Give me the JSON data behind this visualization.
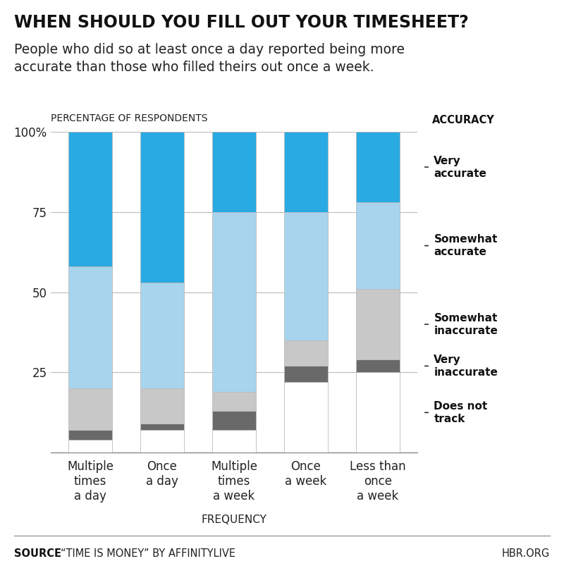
{
  "title_bold": "WHEN SHOULD YOU FILL OUT YOUR TIMESHEET?",
  "title_sub": "People who did so at least once a day reported being more\naccurate than those who filled theirs out once a week.",
  "ylabel": "PERCENTAGE OF RESPONDENTS",
  "xlabel": "FREQUENCY",
  "categories": [
    "Multiple\ntimes\na day",
    "Once\na day",
    "Multiple\ntimes\na week",
    "Once\na week",
    "Less than\nonce\na week"
  ],
  "segments": {
    "Does not\ntrack": [
      4,
      7,
      7,
      22,
      25
    ],
    "Very\ninaccurate": [
      3,
      2,
      6,
      5,
      4
    ],
    "Somewhat\ninaccurate": [
      13,
      11,
      6,
      8,
      22
    ],
    "Somewhat\naccurate": [
      38,
      33,
      56,
      40,
      27
    ],
    "Very\naccurate": [
      42,
      47,
      25,
      25,
      22
    ]
  },
  "colors": {
    "Does not\ntrack": "#ffffff",
    "Very\ninaccurate": "#696969",
    "Somewhat\ninaccurate": "#c8c8c8",
    "Somewhat\naccurate": "#a8d4ee",
    "Very\naccurate": "#29aae2"
  },
  "legend_label": "ACCURACY",
  "source_bold": "SOURCE",
  "source_text": "“TIME IS MONEY” BY AFFINITYLIVE",
  "hbr": "HBR.ORG",
  "yticks": [
    25,
    50,
    75,
    100
  ],
  "ylim": [
    0,
    100
  ],
  "bar_width": 0.6,
  "bg_color": "#ffffff",
  "title_fontsize": 17,
  "subtitle_fontsize": 13.5,
  "ylabel_fontsize": 10,
  "xlabel_fontsize": 11,
  "tick_fontsize": 12,
  "legend_fontsize": 11,
  "source_fontsize": 10.5
}
